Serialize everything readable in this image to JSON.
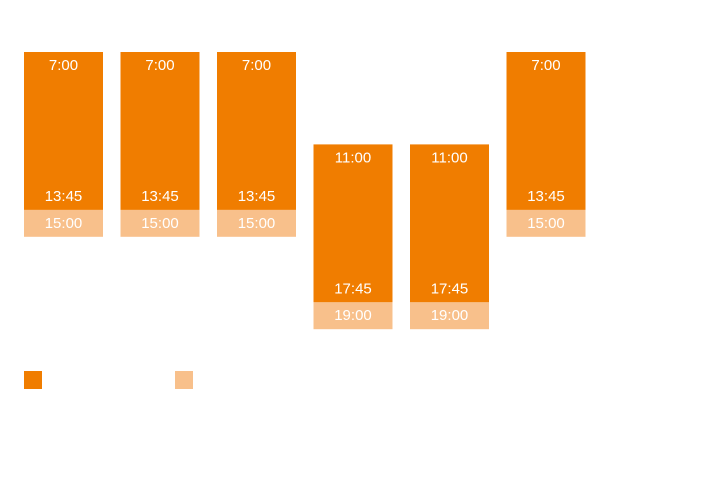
{
  "chart_data": {
    "type": "bar",
    "subtype": "floating-range",
    "categories": [
      "",
      "",
      "",
      "",
      "",
      ""
    ],
    "colors": {
      "main": "#F07D00",
      "extension": "#F8C08B",
      "label": "#FFFFFF"
    },
    "y_range": [
      "7:00",
      "19:00"
    ],
    "grid": false,
    "legend": "bottom-left",
    "series": [
      {
        "name": "",
        "segment": "main",
        "start": [
          "7:00",
          "7:00",
          "7:00",
          "11:00",
          "11:00",
          "7:00"
        ],
        "end": [
          "13:45",
          "13:45",
          "13:45",
          "17:45",
          "17:45",
          "13:45"
        ]
      },
      {
        "name": "",
        "segment": "extension",
        "start": [
          "13:45",
          "13:45",
          "13:45",
          "17:45",
          "17:45",
          "13:45"
        ],
        "end": [
          "15:00",
          "15:00",
          "15:00",
          "19:00",
          "19:00",
          "15:00"
        ]
      }
    ],
    "labels": {
      "start": [
        "7:00",
        "7:00",
        "7:00",
        "11:00",
        "11:00",
        "7:00"
      ],
      "mid": [
        "13:45",
        "13:45",
        "13:45",
        "17:45",
        "17:45",
        "13:45"
      ],
      "end": [
        "15:00",
        "15:00",
        "15:00",
        "19:00",
        "19:00",
        "15:00"
      ]
    }
  }
}
